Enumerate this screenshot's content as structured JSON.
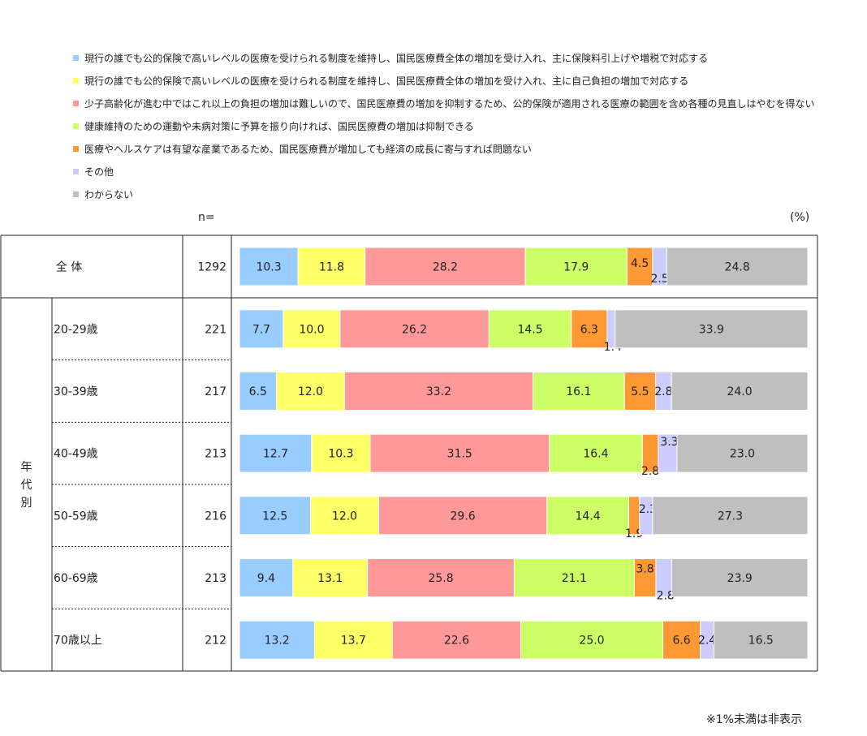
{
  "legend": [
    {
      "label": "現行の誰でも公的保険で高いレベルの医療を受けられる制度を維持し、国民医療費全体の増加を受け入れ、主に保険料引上げや増税で対応する",
      "color": "#99CCFF"
    },
    {
      "label": "現行の誰でも公的保険で高いレベルの医療を受けられる制度を維持し、国民医療費全体の増加を受け入れ、主に自己負担の増加で対応する",
      "color": "#FFFF66"
    },
    {
      "label": "少子高齢化が進む中ではこれ以上の負担の増加は難しいので、国民医療費の増加を抑制するため、公的保険が適用される医療の範囲を含め各種の見直しはやむを得ない",
      "color": "#FF9999"
    },
    {
      "label": "健康維持のための運動や未病対策に予算を振り向ければ、国民医療費の増加は抑制できる",
      "color": "#CCFF66"
    },
    {
      "label": "医療やヘルスケアは有望な産業であるため、国民医療費が増加しても経済の成長に寄与すれば問題ない",
      "color": "#FF9933"
    },
    {
      "label": "その他",
      "color": "#CCCCFF"
    },
    {
      "label": "わからない",
      "color": "#BFBFBF"
    }
  ],
  "header": {
    "n_label": "n=",
    "unit": "(%)"
  },
  "group_label": "年代別",
  "footnote": "※1%未満は非表示",
  "chart_data": {
    "type": "bar",
    "orientation": "horizontal",
    "stacked": true,
    "xlim": [
      0,
      100
    ],
    "categories": [
      "全 体",
      "20-29歳",
      "30-39歳",
      "40-49歳",
      "50-59歳",
      "60-69歳",
      "70歳以上"
    ],
    "n": [
      "1292",
      "221",
      "217",
      "213",
      "216",
      "213",
      "212"
    ],
    "series": [
      {
        "name": "現行の誰でも公的保険で高いレベルの医療を受けられる制度を維持し、国民医療費全体の増加を受け入れ、主に保険料引上げや増税で対応する",
        "color": "#99CCFF",
        "values": [
          10.3,
          7.7,
          6.5,
          12.7,
          12.5,
          9.4,
          13.2
        ]
      },
      {
        "name": "現行の誰でも公的保険で高いレベルの医療を受けられる制度を維持し、国民医療費全体の増加を受け入れ、主に自己負担の増加で対応する",
        "color": "#FFFF66",
        "values": [
          11.8,
          10.0,
          12.0,
          10.3,
          12.0,
          13.1,
          13.7
        ]
      },
      {
        "name": "少子高齢化が進む中ではこれ以上の負担の増加は難しいので、国民医療費の増加を抑制するため、公的保険が適用される医療の範囲を含め各種の見直しはやむを得ない",
        "color": "#FF9999",
        "values": [
          28.2,
          26.2,
          33.2,
          31.5,
          29.6,
          25.8,
          22.6
        ]
      },
      {
        "name": "健康維持のための運動や未病対策に予算を振り向ければ、国民医療費の増加は抑制できる",
        "color": "#CCFF66",
        "values": [
          17.9,
          14.5,
          16.1,
          16.4,
          14.4,
          21.1,
          25.0
        ]
      },
      {
        "name": "医療やヘルスケアは有望な産業であるため、国民医療費が増加しても経済の成長に寄与すれば問題ない",
        "color": "#FF9933",
        "values": [
          4.5,
          6.3,
          5.5,
          2.8,
          1.9,
          3.8,
          6.6
        ]
      },
      {
        "name": "その他",
        "color": "#CCCCFF",
        "values": [
          2.5,
          1.4,
          2.8,
          3.3,
          2.3,
          2.8,
          2.4
        ]
      },
      {
        "name": "わからない",
        "color": "#BFBFBF",
        "values": [
          24.8,
          33.9,
          24.0,
          23.0,
          27.3,
          23.9,
          16.5
        ]
      }
    ]
  }
}
